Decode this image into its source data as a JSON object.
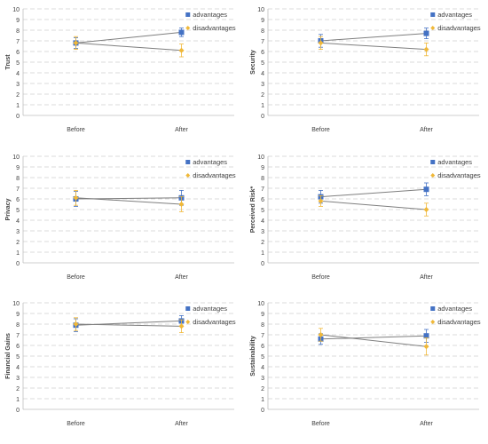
{
  "chart_data": [
    {
      "type": "line",
      "ylabel": "Trust",
      "categories": [
        "Before",
        "After"
      ],
      "ylim": [
        0,
        10
      ],
      "yticks": [
        "0",
        "1",
        "2",
        "3",
        "4",
        "5",
        "6",
        "7",
        "8",
        "9",
        "10"
      ],
      "grid": true,
      "legend_position": "top-right",
      "series": [
        {
          "name": "advantages",
          "values": [
            6.8,
            7.8
          ],
          "err": [
            0.5,
            0.4
          ],
          "marker": "square",
          "color": "#4472c4"
        },
        {
          "name": "disadvantages",
          "values": [
            6.8,
            6.1
          ],
          "err": [
            0.6,
            0.6
          ],
          "marker": "diamond",
          "color": "#f0b838"
        }
      ]
    },
    {
      "type": "line",
      "ylabel": "Security",
      "categories": [
        "Before",
        "After"
      ],
      "ylim": [
        0,
        10
      ],
      "yticks": [
        "0",
        "1",
        "2",
        "3",
        "4",
        "5",
        "6",
        "7",
        "8",
        "9",
        "10"
      ],
      "grid": true,
      "legend_position": "top-right",
      "series": [
        {
          "name": "advantages",
          "values": [
            7.0,
            7.7
          ],
          "err": [
            0.6,
            0.5
          ],
          "marker": "square",
          "color": "#4472c4"
        },
        {
          "name": "disadvantages",
          "values": [
            6.8,
            6.2
          ],
          "err": [
            0.6,
            0.6
          ],
          "marker": "diamond",
          "color": "#f0b838"
        }
      ]
    },
    {
      "type": "line",
      "ylabel": "Privacy",
      "categories": [
        "Before",
        "After"
      ],
      "ylim": [
        0,
        10
      ],
      "yticks": [
        "0",
        "1",
        "2",
        "3",
        "4",
        "5",
        "6",
        "7",
        "8",
        "9",
        "10"
      ],
      "grid": true,
      "legend_position": "top-right",
      "series": [
        {
          "name": "advantages",
          "values": [
            6.0,
            6.1
          ],
          "err": [
            0.7,
            0.7
          ],
          "marker": "square",
          "color": "#4472c4"
        },
        {
          "name": "disadvantages",
          "values": [
            6.1,
            5.5
          ],
          "err": [
            0.7,
            0.7
          ],
          "marker": "diamond",
          "color": "#f0b838"
        }
      ]
    },
    {
      "type": "line",
      "ylabel": "Perceived Risk*",
      "categories": [
        "Before",
        "After"
      ],
      "ylim": [
        0,
        10
      ],
      "yticks": [
        "0",
        "1",
        "2",
        "3",
        "4",
        "5",
        "6",
        "7",
        "8",
        "9",
        "10"
      ],
      "grid": true,
      "legend_position": "top-right",
      "series": [
        {
          "name": "advantages",
          "values": [
            6.2,
            6.9
          ],
          "err": [
            0.6,
            0.6
          ],
          "marker": "square",
          "color": "#4472c4"
        },
        {
          "name": "disadvantages",
          "values": [
            5.8,
            5.0
          ],
          "err": [
            0.5,
            0.6
          ],
          "marker": "diamond",
          "color": "#f0b838"
        }
      ]
    },
    {
      "type": "line",
      "ylabel": "Financial Gains",
      "categories": [
        "Before",
        "After"
      ],
      "ylim": [
        0,
        10
      ],
      "yticks": [
        "0",
        "1",
        "2",
        "3",
        "4",
        "5",
        "6",
        "7",
        "8",
        "9",
        "10"
      ],
      "grid": true,
      "legend_position": "top-right",
      "series": [
        {
          "name": "advantages",
          "values": [
            7.9,
            8.3
          ],
          "err": [
            0.6,
            0.5
          ],
          "marker": "square",
          "color": "#4472c4"
        },
        {
          "name": "disadvantages",
          "values": [
            8.0,
            7.8
          ],
          "err": [
            0.6,
            0.6
          ],
          "marker": "diamond",
          "color": "#f0b838"
        }
      ]
    },
    {
      "type": "line",
      "ylabel": "Sustainability",
      "categories": [
        "Before",
        "After"
      ],
      "ylim": [
        0,
        10
      ],
      "yticks": [
        "0",
        "1",
        "2",
        "3",
        "4",
        "5",
        "6",
        "7",
        "8",
        "9",
        "10"
      ],
      "grid": true,
      "legend_position": "top-right",
      "series": [
        {
          "name": "advantages",
          "values": [
            6.6,
            6.9
          ],
          "err": [
            0.5,
            0.6
          ],
          "marker": "square",
          "color": "#4472c4"
        },
        {
          "name": "disadvantages",
          "values": [
            7.0,
            5.9
          ],
          "err": [
            0.6,
            0.8
          ],
          "marker": "diamond",
          "color": "#f0b838"
        }
      ]
    }
  ]
}
